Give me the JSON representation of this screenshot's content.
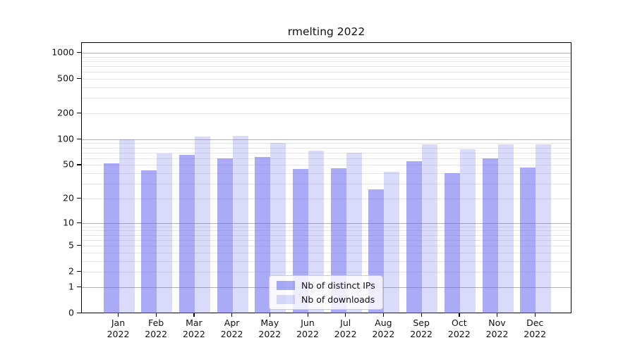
{
  "chart_data": {
    "type": "bar",
    "title": "rmelting 2022",
    "categories": [
      "Jan\n2022",
      "Feb\n2022",
      "Mar\n2022",
      "Apr\n2022",
      "May\n2022",
      "Jun\n2022",
      "Jul\n2022",
      "Aug\n2022",
      "Sep\n2022",
      "Oct\n2022",
      "Nov\n2022",
      "Dec\n2022"
    ],
    "series": [
      {
        "name": "Nb of distinct IPs",
        "color": "rgba(100,100,241,0.55)",
        "values": [
          52,
          43,
          66,
          60,
          62,
          45,
          46,
          26,
          55,
          40,
          60,
          47
        ]
      },
      {
        "name": "Nb of downloads",
        "color": "rgba(107,107,235,0.25)",
        "values": [
          100,
          68,
          108,
          110,
          90,
          74,
          70,
          42,
          88,
          76,
          88,
          88
        ]
      }
    ],
    "yscale": "log1p",
    "ylim": [
      0,
      1000
    ],
    "yticks": [
      0,
      1,
      2,
      5,
      10,
      20,
      50,
      100,
      200,
      500,
      1000
    ],
    "major_gridlines": [
      1,
      10,
      100,
      1000
    ],
    "minor_gridlines": [
      3,
      4,
      6,
      7,
      8,
      9,
      30,
      40,
      60,
      70,
      80,
      90,
      300,
      400,
      600,
      700,
      800,
      900
    ],
    "grid": true,
    "legend_position": "lower-center",
    "xlabel": "",
    "ylabel": ""
  },
  "colors": {
    "major_grid": "#b0b0b0",
    "minor_grid": "#e6e6e6",
    "axis": "#000000",
    "background": "#ffffff"
  }
}
